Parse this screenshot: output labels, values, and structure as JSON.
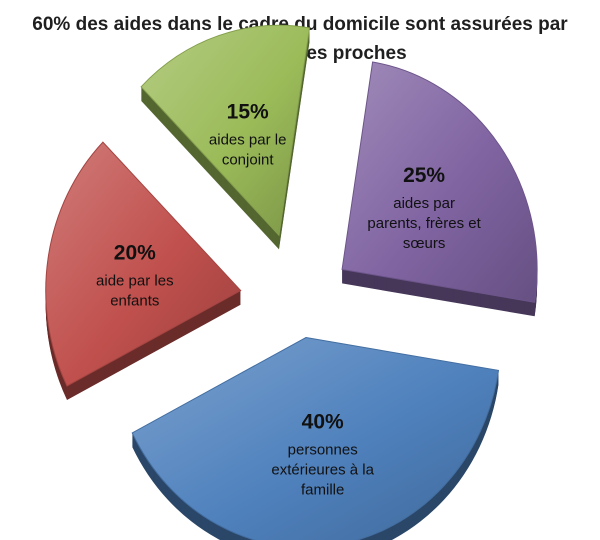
{
  "chart_data": {
    "type": "pie",
    "title_lines": [
      "60% des aides dans le cadre du domicile sont assurées par",
      "des personnes proches"
    ],
    "slices": [
      {
        "value": 25,
        "pct_label": "25%",
        "label_lines": [
          "aides par",
          "parents, frères et",
          "sœurs"
        ]
      },
      {
        "value": 40,
        "pct_label": "40%",
        "label_lines": [
          "personnes",
          "extérieures à la",
          "famille"
        ]
      },
      {
        "value": 20,
        "pct_label": "20%",
        "label_lines": [
          "aide par les",
          "enfants"
        ]
      },
      {
        "value": 15,
        "pct_label": "15%",
        "label_lines": [
          "aides par le",
          "conjoint"
        ]
      }
    ],
    "colors": {
      "purple": "#8064a2",
      "blue": "#4f81bd",
      "red": "#c0504d",
      "green": "#9bbb59"
    },
    "style": "3d-exploded"
  }
}
